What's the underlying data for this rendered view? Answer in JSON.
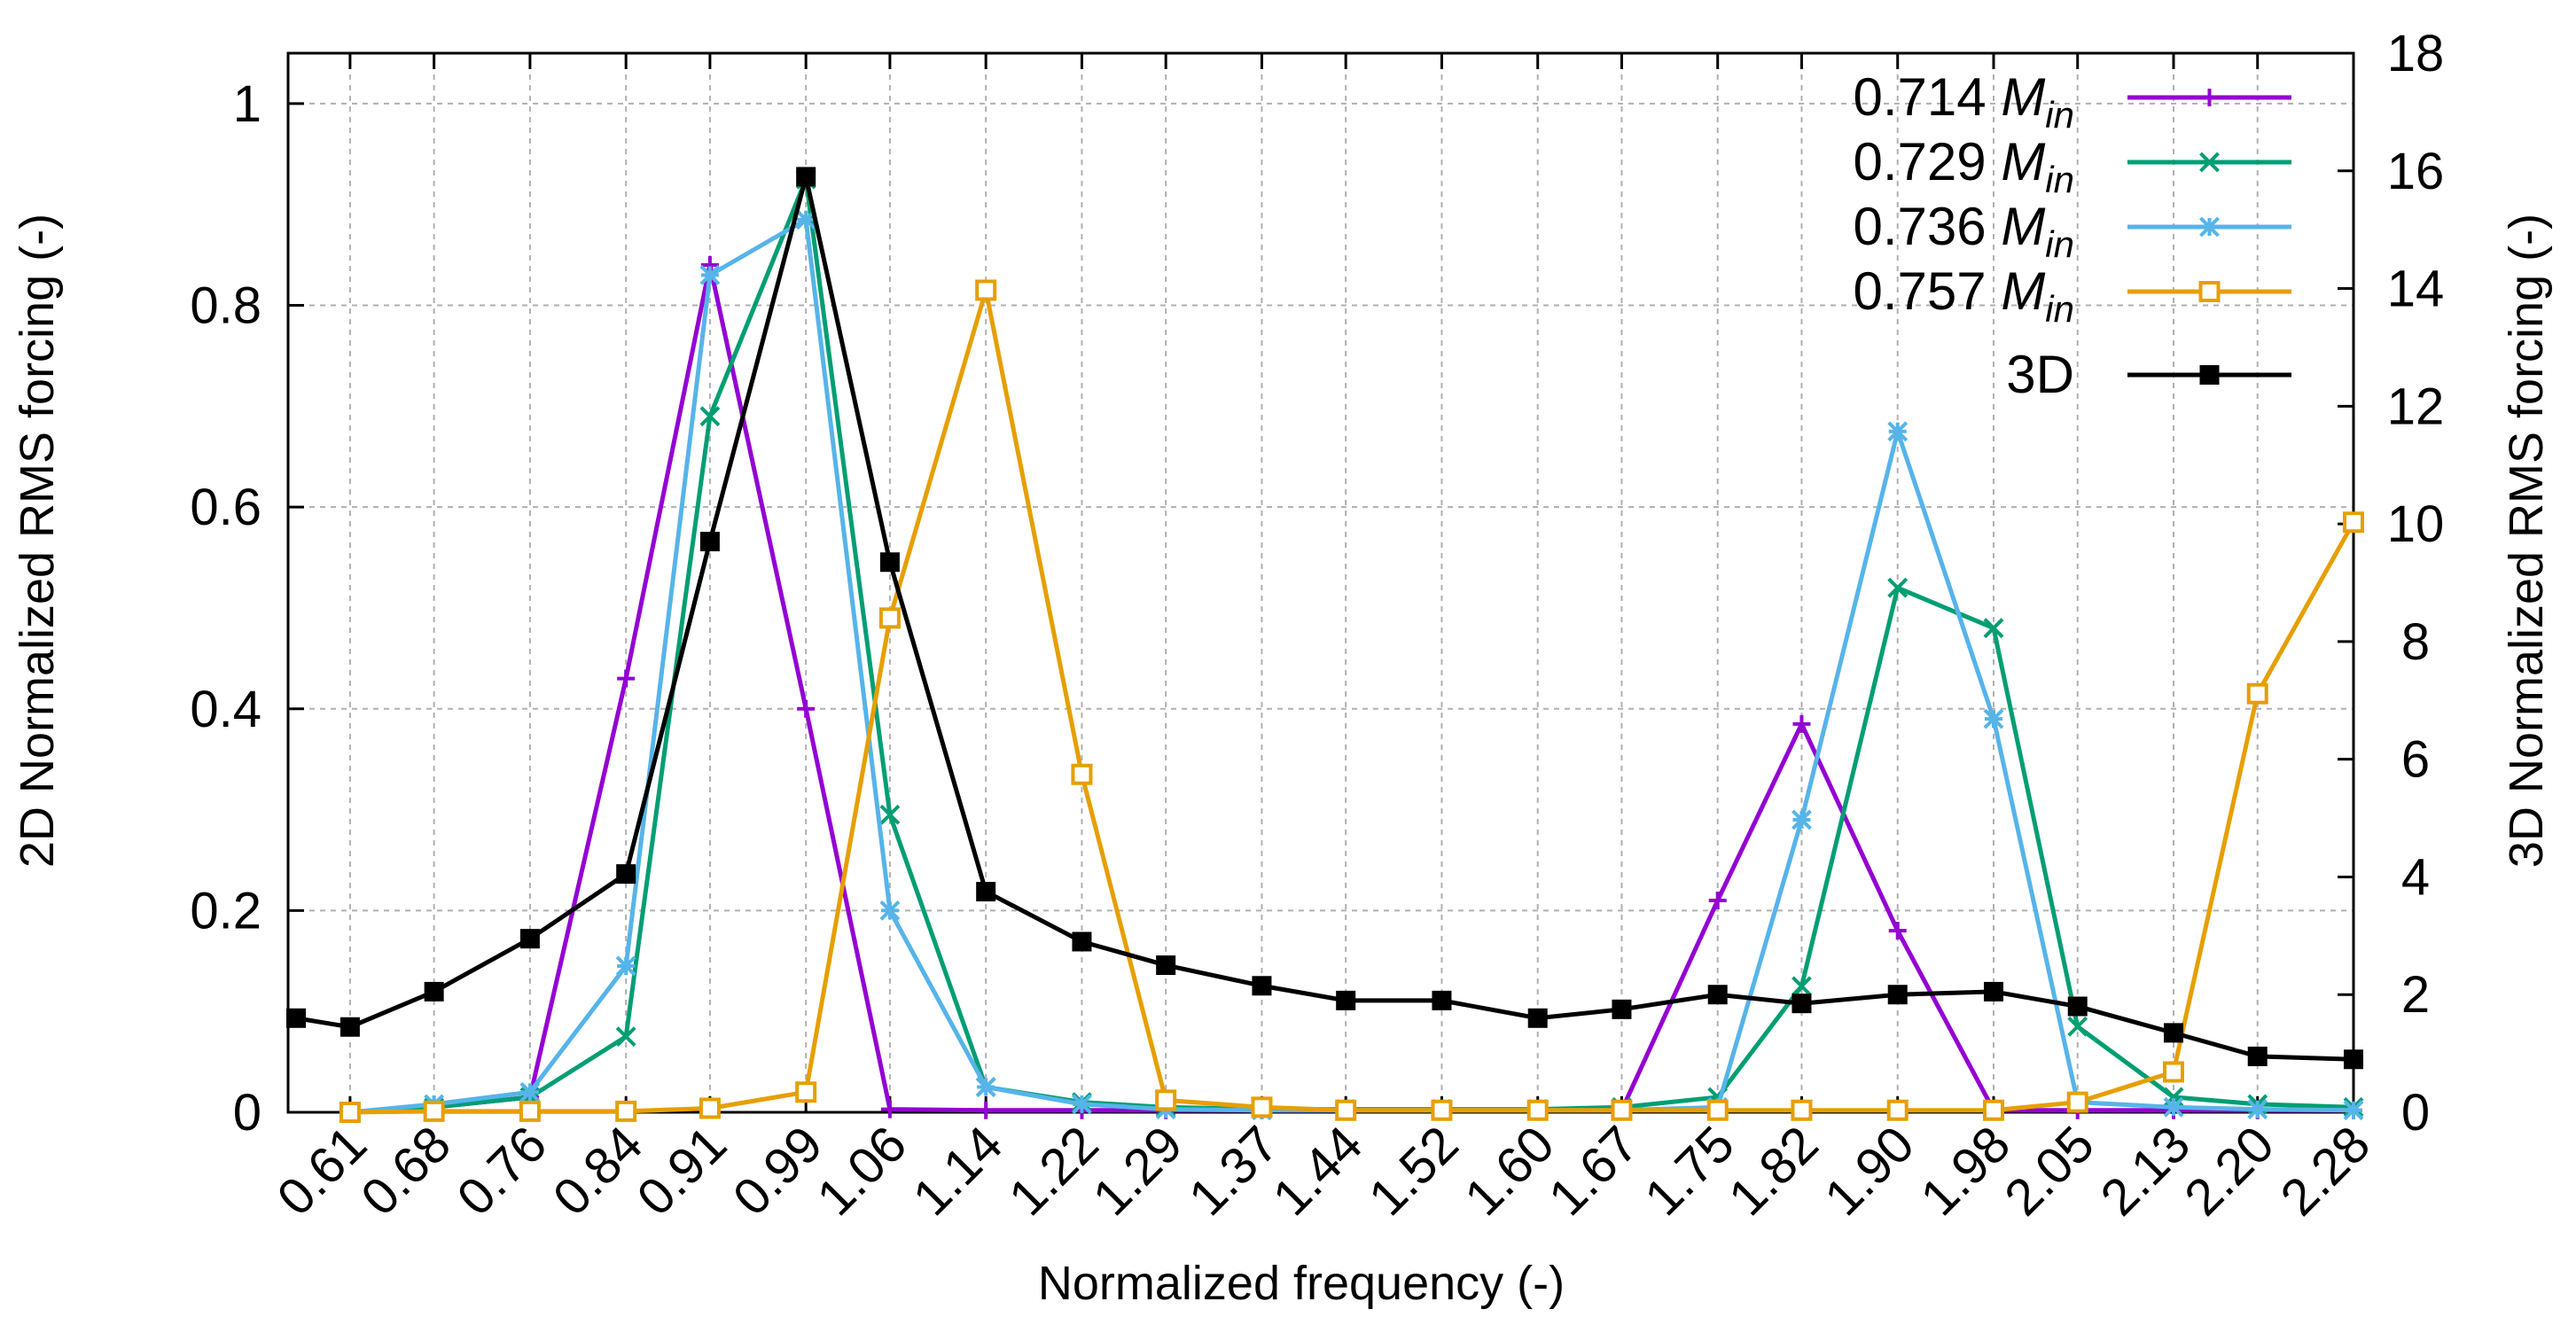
{
  "chart_data": {
    "type": "line",
    "xlabel": "Normalized frequency (-)",
    "ylabel": "2D Normalized RMS forcing (-)",
    "y2label": "3D Normalized RMS forcing (-)",
    "x_tick_labels": [
      "0.61",
      "0.68",
      "0.76",
      "0.84",
      "0.91",
      "0.99",
      "1.06",
      "1.14",
      "1.22",
      "1.29",
      "1.37",
      "1.44",
      "1.52",
      "1.60",
      "1.67",
      "1.75",
      "1.82",
      "1.90",
      "1.98",
      "2.05",
      "2.13",
      "2.20",
      "2.28"
    ],
    "y_ticks": [
      "0",
      "0.2",
      "0.4",
      "0.6",
      "0.8",
      "1"
    ],
    "y2_ticks": [
      "0",
      "2",
      "4",
      "6",
      "8",
      "10",
      "12",
      "14",
      "16",
      "18"
    ],
    "ylim": [
      0,
      1.05
    ],
    "y2lim": [
      0,
      18
    ],
    "xlim": [
      0.61,
      2.28
    ],
    "grid": true,
    "legend_position": "top-right",
    "series": [
      {
        "name_prefix": "0.714",
        "name_var": "M",
        "name_sub": "in",
        "axis": "left",
        "color": "#9400d3",
        "marker": "plus",
        "x": [
          0.61,
          0.68,
          0.76,
          0.84,
          0.91,
          0.99,
          1.06,
          1.14,
          1.22,
          1.29,
          1.37,
          1.44,
          1.52,
          1.6,
          1.67,
          1.75,
          1.82,
          1.9,
          1.98,
          2.05,
          2.13,
          2.2,
          2.28
        ],
        "values": [
          0.0,
          0.005,
          0.015,
          0.43,
          0.84,
          0.4,
          0.003,
          0.002,
          0.002,
          0.002,
          0.002,
          0.002,
          0.002,
          0.002,
          0.002,
          0.21,
          0.385,
          0.18,
          0.002,
          0.002,
          0.002,
          0.002,
          0.002
        ]
      },
      {
        "name_prefix": "0.729",
        "name_var": "M",
        "name_sub": "in",
        "axis": "left",
        "color": "#009e73",
        "marker": "cross",
        "x": [
          0.61,
          0.68,
          0.76,
          0.84,
          0.91,
          0.99,
          1.06,
          1.14,
          1.22,
          1.29,
          1.37,
          1.44,
          1.52,
          1.6,
          1.67,
          1.75,
          1.82,
          1.9,
          1.98,
          2.05,
          2.13,
          2.2,
          2.28
        ],
        "values": [
          0.0,
          0.005,
          0.015,
          0.075,
          0.69,
          0.925,
          0.295,
          0.025,
          0.01,
          0.005,
          0.003,
          0.003,
          0.003,
          0.003,
          0.005,
          0.015,
          0.125,
          0.52,
          0.48,
          0.085,
          0.015,
          0.008,
          0.005
        ]
      },
      {
        "name_prefix": "0.736",
        "name_var": "M",
        "name_sub": "in",
        "axis": "left",
        "color": "#56b4e9",
        "marker": "star",
        "x": [
          0.61,
          0.68,
          0.76,
          0.84,
          0.91,
          0.99,
          1.06,
          1.14,
          1.22,
          1.29,
          1.37,
          1.44,
          1.52,
          1.6,
          1.67,
          1.75,
          1.82,
          1.9,
          1.98,
          2.05,
          2.13,
          2.2,
          2.28
        ],
        "values": [
          0.0,
          0.008,
          0.02,
          0.145,
          0.83,
          0.885,
          0.2,
          0.025,
          0.008,
          0.003,
          0.002,
          0.002,
          0.002,
          0.002,
          0.002,
          0.005,
          0.29,
          0.675,
          0.39,
          0.01,
          0.005,
          0.003,
          0.002
        ]
      },
      {
        "name_prefix": "0.757",
        "name_var": "M",
        "name_sub": "in",
        "axis": "left",
        "color": "#e69f00",
        "marker": "open-square",
        "x": [
          0.61,
          0.68,
          0.76,
          0.84,
          0.91,
          0.99,
          1.06,
          1.14,
          1.22,
          1.29,
          1.37,
          1.44,
          1.52,
          1.6,
          1.67,
          1.75,
          1.82,
          1.9,
          1.98,
          2.05,
          2.13,
          2.2,
          2.28
        ],
        "values": [
          0.0,
          0.001,
          0.001,
          0.001,
          0.004,
          0.02,
          0.49,
          0.815,
          0.335,
          0.012,
          0.005,
          0.002,
          0.002,
          0.002,
          0.002,
          0.002,
          0.002,
          0.002,
          0.002,
          0.01,
          0.04,
          0.415,
          0.585
        ]
      },
      {
        "name": "3D",
        "axis": "right",
        "color": "#000000",
        "marker": "filled-square",
        "x": [
          0.565,
          0.61,
          0.68,
          0.76,
          0.84,
          0.91,
          0.99,
          1.06,
          1.14,
          1.22,
          1.29,
          1.37,
          1.44,
          1.52,
          1.6,
          1.67,
          1.75,
          1.82,
          1.9,
          1.98,
          2.05,
          2.13,
          2.2,
          2.28
        ],
        "values": [
          1.6,
          1.45,
          2.05,
          2.95,
          4.05,
          9.7,
          15.9,
          9.35,
          3.75,
          2.9,
          2.5,
          2.15,
          1.9,
          1.9,
          1.6,
          1.75,
          2.0,
          1.85,
          2.0,
          2.05,
          1.8,
          1.35,
          0.95,
          0.9
        ]
      }
    ]
  }
}
